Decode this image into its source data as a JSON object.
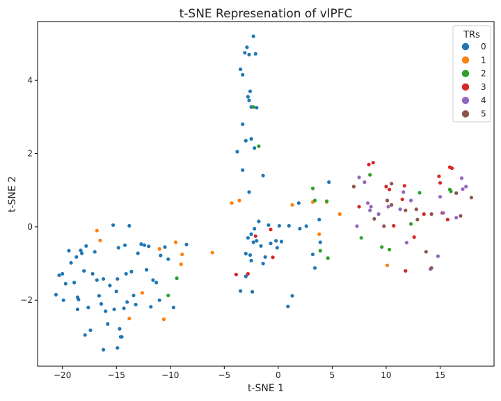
{
  "chart_data": {
    "type": "scatter",
    "title": "t-SNE Represenation of vlPFC",
    "xlabel": "t-SNE 1",
    "ylabel": "t-SNE 2",
    "xlim": [
      -22.3,
      20.0
    ],
    "ylim": [
      -3.8,
      5.6
    ],
    "xticks": [
      -20,
      -15,
      -10,
      -5,
      0,
      5,
      10,
      15
    ],
    "yticks": [
      -2,
      0,
      2,
      4
    ],
    "grid": false,
    "legend": {
      "title": "TRs",
      "placement": "top-right"
    },
    "series": [
      {
        "name": "0",
        "color": "#1f77b4",
        "points": [
          [
            -20.6,
            -1.85
          ],
          [
            -20.3,
            -1.32
          ],
          [
            -20.0,
            -1.28
          ],
          [
            -19.9,
            -2.0
          ],
          [
            -19.7,
            -1.55
          ],
          [
            -19.4,
            -0.65
          ],
          [
            -19.2,
            -0.98
          ],
          [
            -18.9,
            -1.52
          ],
          [
            -18.7,
            -0.82
          ],
          [
            -18.6,
            -2.25
          ],
          [
            -18.5,
            -1.98
          ],
          [
            -18.3,
            -0.64
          ],
          [
            -18.2,
            -0.72
          ],
          [
            -18.0,
            -1.2
          ],
          [
            -17.8,
            -0.52
          ],
          [
            -17.6,
            -2.2
          ],
          [
            -17.4,
            -2.82
          ],
          [
            -17.2,
            -1.28
          ],
          [
            -17.0,
            -0.68
          ],
          [
            -16.8,
            -1.45
          ],
          [
            -16.6,
            -1.88
          ],
          [
            -16.4,
            -2.1
          ],
          [
            -16.2,
            -1.42
          ],
          [
            -16.0,
            -2.3
          ],
          [
            -15.8,
            -2.65
          ],
          [
            -15.6,
            -1.6
          ],
          [
            -15.3,
            0.05
          ],
          [
            -15.2,
            -2.25
          ],
          [
            -15.0,
            -1.76
          ],
          [
            -14.9,
            -1.42
          ],
          [
            -14.8,
            -0.57
          ],
          [
            -14.7,
            -2.78
          ],
          [
            -14.5,
            -3.0
          ],
          [
            -14.3,
            -2.22
          ],
          [
            -14.2,
            -0.5
          ],
          [
            -14.1,
            -1.28
          ],
          [
            -14.0,
            -2.05
          ],
          [
            -13.8,
            0.03
          ],
          [
            -13.6,
            -1.22
          ],
          [
            -13.4,
            -1.87
          ],
          [
            -13.2,
            -2.12
          ],
          [
            -13.0,
            -0.72
          ],
          [
            -12.7,
            -0.47
          ],
          [
            -12.4,
            -0.5
          ],
          [
            -12.2,
            -1.17
          ],
          [
            -12.0,
            -0.53
          ],
          [
            -11.8,
            -2.18
          ],
          [
            -11.6,
            -1.45
          ],
          [
            -11.3,
            -1.52
          ],
          [
            -11.0,
            -2.0
          ],
          [
            -10.9,
            -0.78
          ],
          [
            -10.5,
            -0.55
          ],
          [
            -10.2,
            -0.88
          ],
          [
            -9.7,
            -2.2
          ],
          [
            -8.5,
            -0.48
          ],
          [
            -16.2,
            -3.35
          ],
          [
            -17.9,
            -2.95
          ],
          [
            -18.6,
            -1.92
          ],
          [
            -3.5,
            4.3
          ],
          [
            -3.3,
            4.15
          ],
          [
            -3.1,
            4.75
          ],
          [
            -2.9,
            4.9
          ],
          [
            -2.7,
            4.7
          ],
          [
            -2.3,
            5.2
          ],
          [
            -2.1,
            4.72
          ],
          [
            -2.5,
            3.27
          ],
          [
            -2.7,
            3.45
          ],
          [
            -2.8,
            3.55
          ],
          [
            -2.6,
            3.7
          ],
          [
            -2.0,
            3.25
          ],
          [
            -3.3,
            2.8
          ],
          [
            -3.0,
            2.35
          ],
          [
            -2.5,
            2.4
          ],
          [
            -2.2,
            2.15
          ],
          [
            -3.8,
            2.05
          ],
          [
            -3.3,
            1.55
          ],
          [
            -1.4,
            1.4
          ],
          [
            -2.7,
            0.95
          ],
          [
            -3.0,
            -0.73
          ],
          [
            -2.6,
            -0.77
          ],
          [
            -2.3,
            -0.42
          ],
          [
            -2.0,
            -0.38
          ],
          [
            -1.6,
            -0.52
          ],
          [
            -2.8,
            -0.3
          ],
          [
            -2.5,
            -0.2
          ],
          [
            -2.2,
            -0.05
          ],
          [
            -1.2,
            -0.82
          ],
          [
            -0.7,
            -0.45
          ],
          [
            -0.2,
            -0.38
          ],
          [
            -0.1,
            -0.57
          ],
          [
            0.3,
            -0.4
          ],
          [
            0.1,
            0.03
          ],
          [
            -1.8,
            0.15
          ],
          [
            -0.9,
            0.05
          ],
          [
            -1.4,
            -1.0
          ],
          [
            -2.5,
            -0.92
          ],
          [
            -3.0,
            -1.35
          ],
          [
            -3.5,
            -1.75
          ],
          [
            -2.4,
            -1.77
          ],
          [
            0.9,
            -2.17
          ],
          [
            1.3,
            -1.88
          ],
          [
            1.9,
            0.65
          ],
          [
            1.0,
            0.03
          ],
          [
            2.0,
            -0.05
          ],
          [
            2.6,
            0.02
          ],
          [
            3.2,
            -0.75
          ],
          [
            3.4,
            -1.12
          ],
          [
            3.8,
            0.2
          ],
          [
            3.9,
            -0.42
          ],
          [
            4.7,
            1.22
          ],
          [
            -14.9,
            -3.3
          ],
          [
            -14.6,
            -3.0
          ]
        ]
      },
      {
        "name": "1",
        "color": "#ff7f0e",
        "points": [
          [
            -16.8,
            -0.1
          ],
          [
            -16.5,
            -0.37
          ],
          [
            -13.8,
            -2.5
          ],
          [
            -12.6,
            -1.8
          ],
          [
            -11.0,
            -0.6
          ],
          [
            -10.6,
            -2.52
          ],
          [
            -9.5,
            -0.42
          ],
          [
            -9.0,
            -1.02
          ],
          [
            -8.9,
            -0.75
          ],
          [
            -6.1,
            -0.7
          ],
          [
            -4.3,
            0.65
          ],
          [
            -3.6,
            0.72
          ],
          [
            1.3,
            0.6
          ],
          [
            3.2,
            0.68
          ],
          [
            3.8,
            -0.2
          ],
          [
            4.5,
            0.68
          ],
          [
            5.7,
            0.35
          ],
          [
            10.1,
            -1.05
          ]
        ]
      },
      {
        "name": "2",
        "color": "#2ca02c",
        "points": [
          [
            -10.2,
            -1.87
          ],
          [
            -9.4,
            -1.4
          ],
          [
            -2.3,
            3.27
          ],
          [
            -1.8,
            2.2
          ],
          [
            3.2,
            1.05
          ],
          [
            3.4,
            0.72
          ],
          [
            3.9,
            -0.65
          ],
          [
            4.5,
            0.7
          ],
          [
            4.6,
            -0.85
          ],
          [
            7.7,
            -0.3
          ],
          [
            8.5,
            1.42
          ],
          [
            9.6,
            -0.55
          ],
          [
            10.3,
            -0.62
          ],
          [
            12.3,
            0.08
          ],
          [
            13.1,
            0.93
          ],
          [
            15.9,
            1.02
          ],
          [
            16.0,
            0.97
          ]
        ]
      },
      {
        "name": "3",
        "color": "#d62728",
        "points": [
          [
            -3.9,
            -1.3
          ],
          [
            -2.8,
            -1.28
          ],
          [
            -2.1,
            -0.25
          ],
          [
            -0.7,
            -0.07
          ],
          [
            -0.5,
            -0.83
          ],
          [
            7.5,
            0.55
          ],
          [
            8.4,
            1.7
          ],
          [
            8.8,
            1.75
          ],
          [
            10.0,
            1.1
          ],
          [
            10.3,
            1.02
          ],
          [
            10.7,
            0.03
          ],
          [
            11.5,
            0.75
          ],
          [
            11.7,
            1.12
          ],
          [
            11.8,
            -1.2
          ],
          [
            12.6,
            -0.28
          ],
          [
            13.5,
            0.35
          ],
          [
            14.9,
            1.38
          ],
          [
            15.0,
            1.2
          ],
          [
            15.2,
            0.38
          ],
          [
            15.7,
            0.2
          ],
          [
            15.9,
            1.63
          ],
          [
            16.1,
            1.6
          ]
        ]
      },
      {
        "name": "4",
        "color": "#9467bd",
        "points": [
          [
            7.3,
            0.02
          ],
          [
            7.5,
            1.35
          ],
          [
            8.0,
            1.22
          ],
          [
            8.3,
            0.65
          ],
          [
            8.5,
            0.45
          ],
          [
            8.6,
            0.55
          ],
          [
            9.3,
            0.35
          ],
          [
            10.2,
            0.55
          ],
          [
            11.3,
            0.48
          ],
          [
            11.6,
            0.95
          ],
          [
            11.9,
            -0.43
          ],
          [
            12.3,
            0.72
          ],
          [
            14.1,
            -1.15
          ],
          [
            14.8,
            -0.8
          ],
          [
            15.0,
            0.82
          ],
          [
            15.3,
            0.38
          ],
          [
            16.5,
            0.25
          ],
          [
            17.0,
            1.33
          ],
          [
            17.1,
            1.03
          ],
          [
            17.4,
            1.1
          ]
        ]
      },
      {
        "name": "5",
        "color": "#8c564b",
        "points": [
          [
            7.0,
            1.1
          ],
          [
            8.9,
            0.22
          ],
          [
            9.8,
            0.02
          ],
          [
            10.5,
            1.18
          ],
          [
            10.5,
            0.6
          ],
          [
            11.8,
            0.45
          ],
          [
            12.8,
            0.48
          ],
          [
            12.9,
            0.2
          ],
          [
            13.7,
            -0.68
          ],
          [
            14.2,
            0.35
          ],
          [
            14.2,
            -1.12
          ],
          [
            16.5,
            0.92
          ],
          [
            16.9,
            0.3
          ],
          [
            17.9,
            0.8
          ],
          [
            10.1,
            0.72
          ]
        ]
      }
    ]
  }
}
